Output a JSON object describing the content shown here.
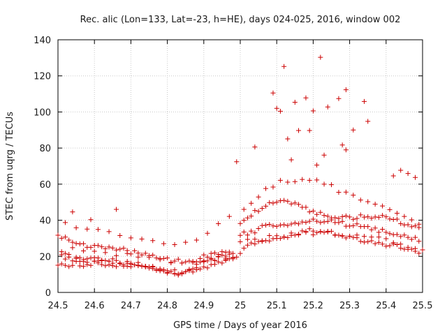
{
  "chart_data": {
    "type": "scatter",
    "title": "Rec. alic (Lon=133, Lat=-23, h=HE), days 024-025, 2016, window 002",
    "xlabel": "GPS time / Days of year 2016",
    "ylabel": "STEC from uqrg / TECUs",
    "xlim": [
      24.5,
      25.5
    ],
    "ylim": [
      0,
      140
    ],
    "xticks": [
      24.5,
      24.6,
      24.7,
      24.8,
      24.9,
      25,
      25.1,
      25.2,
      25.3,
      25.4,
      25.5
    ],
    "xtick_labels": [
      "24.5",
      "24.6",
      "24.7",
      "24.8",
      "24.9",
      "25",
      "25.1",
      "25.2",
      "25.3",
      "25.4",
      "25.5"
    ],
    "yticks": [
      0,
      20,
      40,
      60,
      80,
      100,
      120,
      140
    ],
    "ytick_labels": [
      "0",
      "20",
      "40",
      "60",
      "80",
      "100",
      "120",
      "140"
    ],
    "grid": true,
    "marker": "+",
    "color": "#cc0000",
    "series": [
      {
        "name": "STEC",
        "x": [
          24.51,
          24.52,
          24.52,
          24.53,
          24.53,
          24.54,
          24.55,
          24.55,
          24.56,
          24.56,
          24.57,
          24.57,
          24.58,
          24.58,
          24.59,
          24.6,
          24.6,
          24.61,
          24.61,
          24.62,
          24.62,
          24.63,
          24.64,
          24.64,
          24.65,
          24.65,
          24.66,
          24.67,
          24.67,
          24.68,
          24.69,
          24.69,
          24.7,
          24.7,
          24.71,
          24.72,
          24.72,
          24.73,
          24.74,
          24.74,
          24.75,
          24.76,
          24.76,
          24.77,
          24.78,
          24.78,
          24.79,
          24.8,
          24.8,
          24.81,
          24.82,
          24.82,
          24.83,
          24.84,
          24.84,
          24.85,
          24.86,
          24.86,
          24.87,
          24.88,
          24.88,
          24.89,
          24.9,
          24.9,
          24.91,
          24.92,
          24.92,
          24.93,
          24.94,
          24.94,
          24.95,
          24.96,
          24.96,
          24.97,
          24.98,
          24.98,
          24.99,
          24.5,
          24.51,
          24.52,
          24.53,
          24.54,
          24.55,
          24.56,
          24.57,
          24.58,
          24.59,
          24.6,
          24.61,
          24.62,
          24.63,
          24.64,
          24.65,
          24.66,
          24.67,
          24.68,
          24.69,
          24.7,
          24.71,
          24.72,
          24.73,
          24.74,
          24.75,
          24.76,
          24.77,
          24.78,
          24.79,
          24.8,
          24.81,
          24.82,
          24.83,
          24.84,
          24.85,
          24.86,
          24.87,
          24.88,
          24.89,
          24.9,
          24.91,
          24.92,
          24.93,
          24.94,
          24.95,
          24.96,
          24.97,
          24.98,
          24.5,
          24.51,
          24.52,
          24.53,
          24.54,
          24.55,
          24.56,
          24.57,
          24.58,
          24.59,
          24.6,
          24.61,
          24.62,
          24.63,
          24.64,
          24.65,
          24.66,
          24.67,
          24.68,
          24.69,
          24.7,
          24.71,
          24.72,
          24.73,
          24.74,
          24.75,
          24.76,
          24.77,
          24.78,
          24.79,
          24.8,
          24.81,
          24.82,
          24.83,
          24.84,
          24.85,
          24.86,
          24.87,
          24.88,
          24.89,
          24.9,
          24.91,
          24.92,
          24.93,
          24.94,
          24.95,
          24.96,
          24.97,
          24.98,
          24.51,
          24.54,
          24.57,
          24.6,
          24.63,
          24.66,
          24.69,
          24.72,
          24.75,
          24.78,
          24.81,
          24.84,
          24.87,
          24.9,
          24.93,
          24.96,
          24.52,
          24.55,
          24.58,
          24.61,
          24.64,
          24.67,
          24.7,
          24.73,
          24.76,
          24.79,
          24.82,
          24.85,
          24.88,
          24.91,
          24.94,
          24.97,
          25.0,
          25.01,
          25.02,
          25.03,
          25.04,
          25.05,
          25.06,
          25.07,
          25.08,
          25.09,
          25.1,
          25.11,
          25.12,
          25.13,
          25.14,
          25.15,
          25.16,
          25.17,
          25.18,
          25.19,
          25.2,
          25.21,
          25.22,
          25.23,
          25.24,
          25.25,
          25.26,
          25.27,
          25.28,
          25.29,
          25.3,
          25.31,
          25.32,
          25.33,
          25.34,
          25.35,
          25.36,
          25.37,
          25.38,
          25.39,
          25.4,
          25.41,
          25.42,
          25.43,
          25.44,
          25.45,
          25.46,
          25.47,
          25.48,
          25.49,
          25.0,
          25.01,
          25.02,
          25.03,
          25.04,
          25.05,
          25.06,
          25.07,
          25.08,
          25.09,
          25.1,
          25.11,
          25.12,
          25.13,
          25.14,
          25.15,
          25.16,
          25.17,
          25.18,
          25.19,
          25.2,
          25.21,
          25.22,
          25.23,
          25.24,
          25.25,
          25.26,
          25.27,
          25.28,
          25.29,
          25.3,
          25.31,
          25.32,
          25.33,
          25.34,
          25.35,
          25.36,
          25.37,
          25.38,
          25.39,
          25.4,
          25.41,
          25.42,
          25.43,
          25.44,
          25.45,
          25.46,
          25.47,
          25.48,
          25.49,
          25.0,
          25.01,
          25.02,
          25.03,
          25.04,
          25.05,
          25.06,
          25.07,
          25.08,
          25.09,
          25.1,
          25.11,
          25.12,
          25.13,
          25.14,
          25.15,
          25.16,
          25.17,
          25.18,
          25.19,
          25.2,
          25.21,
          25.22,
          25.23,
          25.24,
          25.25,
          25.26,
          25.27,
          25.28,
          25.29,
          25.3,
          25.31,
          25.32,
          25.33,
          25.34,
          25.35,
          25.36,
          25.37,
          25.38,
          25.39,
          25.4,
          25.41,
          25.42,
          25.43,
          25.44,
          25.45,
          25.46,
          25.47,
          25.48,
          25.49,
          25.01,
          25.03,
          25.05,
          25.07,
          25.09,
          25.11,
          25.13,
          25.15,
          25.17,
          25.19,
          25.21,
          25.23,
          25.25,
          25.27,
          25.29,
          25.31,
          25.33,
          25.35,
          25.37,
          25.39,
          25.41,
          25.43,
          25.45,
          25.47,
          25.49,
          25.0,
          25.02,
          25.04,
          25.06,
          25.08,
          25.1,
          25.12,
          25.14,
          25.16,
          25.18,
          25.2,
          25.22,
          25.24,
          25.26,
          25.28,
          25.3,
          25.32,
          25.34,
          25.36,
          25.38,
          25.4,
          25.42,
          25.44,
          25.46,
          25.48,
          25.5,
          24.54,
          24.59,
          24.66,
          24.99,
          25.09,
          25.1,
          25.11,
          25.13,
          25.15,
          25.16,
          25.18,
          25.19,
          25.2,
          25.22,
          25.24,
          25.27,
          25.29,
          25.29,
          25.34,
          25.35,
          25.04,
          25.12,
          25.14,
          25.21,
          25.23,
          25.28,
          25.31,
          25.42,
          25.44,
          25.46,
          25.48
        ],
        "y": [
          20.9,
          18.5,
          21.6,
          19.6,
          21.1,
          17.5,
          19.5,
          18.8,
          19.2,
          17.2,
          18.2,
          17.1,
          18.6,
          16.7,
          19.1,
          17.3,
          19.3,
          17.4,
          19.1,
          17.9,
          17.6,
          17.7,
          17.3,
          17.3,
          16.2,
          18.6,
          17.7,
          16.3,
          16.0,
          15.3,
          16.2,
          17.2,
          16.2,
          15.6,
          15.3,
          15.1,
          16.6,
          14.7,
          14.1,
          14.5,
          14.2,
          14.1,
          13.2,
          12.2,
          13.1,
          12.0,
          11.9,
          10.7,
          11.0,
          11.6,
          12.5,
          10.2,
          10.2,
          10.4,
          10.9,
          11.5,
          12.8,
          12.1,
          13.1,
          13.7,
          15.6,
          16.8,
          17.0,
          17.5,
          17.5,
          18.9,
          18.4,
          17.8,
          19.7,
          19.9,
          20.7,
          19.0,
          20.1,
          21.2,
          19.2,
          19.4,
          19.6,
          31.7,
          30.0,
          30.7,
          29.0,
          27.8,
          27.1,
          26.9,
          27.0,
          25.0,
          25.0,
          26.1,
          26.0,
          25.3,
          24.2,
          25.2,
          24.6,
          23.5,
          24.0,
          24.5,
          23.2,
          21.3,
          23.1,
          21.8,
          20.8,
          21.7,
          20.4,
          20.7,
          19.1,
          18.8,
          18.8,
          19.1,
          16.7,
          17.4,
          18.4,
          16.3,
          16.9,
          17.4,
          17.2,
          17.0,
          18.8,
          20.8,
          19.6,
          21.6,
          21.9,
          21.1,
          22.6,
          22.3,
          22.4,
          21.6,
          15.1,
          15.8,
          15.0,
          14.3,
          15.0,
          17.2,
          14.7,
          14.4,
          15.4,
          15.0,
          17.3,
          16.4,
          15.4,
          14.8,
          15.3,
          14.8,
          14.3,
          15.9,
          14.5,
          14.5,
          14.2,
          15.3,
          14.8,
          14.5,
          14.5,
          13.5,
          14.5,
          12.8,
          12.4,
          12.6,
          12.0,
          11.6,
          10.5,
          9.6,
          10.3,
          11.5,
          12.4,
          11.3,
          12.5,
          13.0,
          14.1,
          13.6,
          15.4,
          17.6,
          16.9,
          16.3,
          18.2,
          18.6,
          18.6,
          22.6,
          24.8,
          23.0,
          22.8,
          22.1,
          20.4,
          21.6,
          19.6,
          19.4,
          18.2,
          16.4,
          16.3,
          16.6,
          17.2,
          15.6,
          17.7,
          38.7,
          35.8,
          35.1,
          34.9,
          33.7,
          31.5,
          30.2,
          29.6,
          28.7,
          27.0,
          26.5,
          27.8,
          29.0,
          32.8,
          38.1,
          42.1,
          21.6,
          24.5,
          26.2,
          27.4,
          26.9,
          28.2,
          28.6,
          28.7,
          28.5,
          29.8,
          31.4,
          29.9,
          30.6,
          30.4,
          31.6,
          31.8,
          32.3,
          34.1,
          33.8,
          35.3,
          34.0,
          33.1,
          33.6,
          33.3,
          33.9,
          33.9,
          31.9,
          31.7,
          31.2,
          30.2,
          31.2,
          30.5,
          30.3,
          28.3,
          27.9,
          28.1,
          28.6,
          27.0,
          27.7,
          26.8,
          25.6,
          25.9,
          26.9,
          26.5,
          24.5,
          24.0,
          23.9,
          24.0,
          22.8,
          21.7,
          31.6,
          33.5,
          31.8,
          34.0,
          33.0,
          35.4,
          37.1,
          37.3,
          37.7,
          36.9,
          36.6,
          37.3,
          37.5,
          37.1,
          37.9,
          38.5,
          38.0,
          39.0,
          38.8,
          39.4,
          40.6,
          39.4,
          38.7,
          39.1,
          39.3,
          40.2,
          38.7,
          38.7,
          39.3,
          36.7,
          36.8,
          37.0,
          38.0,
          36.5,
          36.5,
          36.5,
          34.7,
          35.7,
          33.3,
          35.0,
          33.3,
          32.6,
          32.0,
          32.1,
          31.0,
          31.8,
          30.5,
          29.4,
          30.5,
          28.4,
          38.2,
          40.0,
          41.3,
          42.3,
          45.4,
          44.9,
          46.6,
          47.8,
          49.8,
          49.5,
          50.0,
          50.8,
          51.0,
          50.5,
          49.0,
          49.6,
          48.8,
          47.2,
          47.2,
          44.6,
          45.1,
          43.2,
          44.4,
          42.7,
          42.2,
          41.3,
          41.4,
          41.0,
          42.0,
          42.4,
          41.8,
          40.5,
          41.0,
          43.0,
          41.7,
          41.9,
          41.1,
          41.8,
          41.6,
          42.7,
          41.9,
          40.7,
          40.4,
          40.6,
          38.1,
          37.4,
          37.5,
          36.4,
          36.9,
          35.9,
          46.0,
          49.4,
          52.9,
          57.6,
          58.4,
          62.1,
          61.1,
          61.4,
          62.6,
          62.1,
          62.3,
          60.0,
          59.7,
          55.5,
          55.6,
          53.9,
          51.2,
          50.3,
          48.9,
          47.9,
          45.9,
          43.9,
          42.1,
          40.2,
          37.8,
          28.1,
          29.4,
          29.5,
          28.3,
          31.5,
          29.9,
          30.8,
          32.9,
          31.8,
          33.3,
          31.9,
          33.8,
          33.5,
          31.7,
          31.4,
          31.1,
          31.8,
          31.1,
          30.7,
          30.7,
          29.8,
          27.6,
          26.8,
          25.0,
          24.3,
          23.6,
          44.6,
          40.3,
          46.0,
          72.4,
          110.5,
          102.0,
          100.4,
          85.1,
          105.4,
          89.7,
          107.8,
          89.7,
          100.6,
          130.3,
          102.8,
          107.4,
          112.3,
          79.0,
          105.8,
          94.8,
          80.6,
          125.2,
          73.5,
          70.6,
          76.1,
          81.7,
          90.0,
          64.6,
          67.7,
          65.9,
          63.7
        ]
      }
    ]
  }
}
